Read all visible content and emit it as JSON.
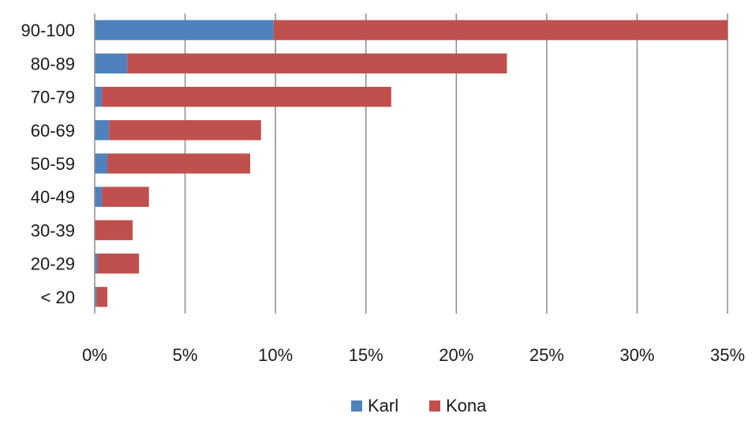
{
  "chart_data": {
    "type": "bar",
    "orientation": "horizontal",
    "stacked": true,
    "categories": [
      "90-100",
      "80-89",
      "70-79",
      "60-69",
      "50-59",
      "40-49",
      "30-39",
      "20-29",
      "< 20"
    ],
    "series": [
      {
        "name": "Karl",
        "color": "#4f81bd",
        "values": [
          9.9,
          1.8,
          0.4,
          0.8,
          0.7,
          0.4,
          0.0,
          0.15,
          0.1
        ]
      },
      {
        "name": "Kona",
        "color": "#c0504d",
        "values": [
          25.1,
          21.0,
          16.0,
          8.4,
          7.9,
          2.6,
          2.1,
          2.3,
          0.6
        ]
      }
    ],
    "x_ticks": [
      "0%",
      "5%",
      "10%",
      "15%",
      "20%",
      "25%",
      "30%",
      "35%"
    ],
    "xlim": [
      0,
      35
    ],
    "grid": "vertical",
    "legend": "bottom",
    "title": "",
    "xlabel": "",
    "ylabel": ""
  }
}
